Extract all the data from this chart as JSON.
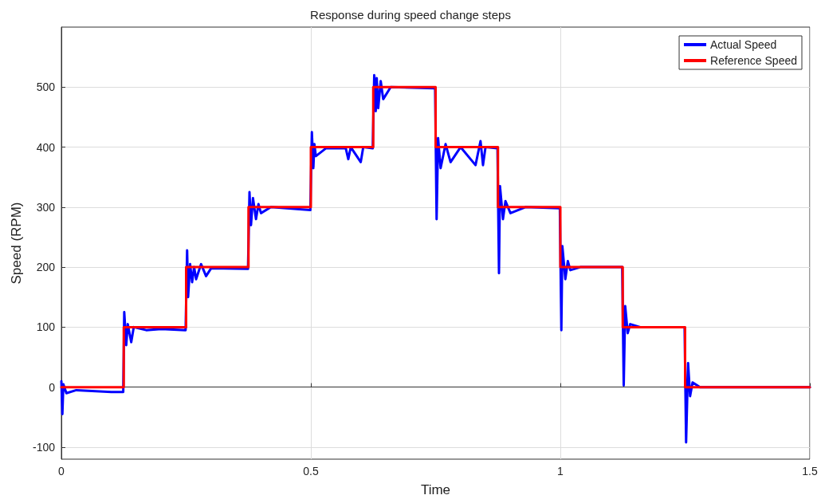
{
  "chart_data": {
    "type": "line",
    "title": "Response during speed change steps",
    "xlabel": "Time",
    "ylabel": "Speed (RPM)",
    "xlim": [
      0,
      1.5
    ],
    "xticks": [
      0,
      0.5,
      1,
      1.5
    ],
    "ylim": [
      -120,
      600
    ],
    "yticks": [
      -100,
      0,
      100,
      200,
      300,
      400,
      500
    ],
    "grid": true,
    "legend": "top right",
    "marker": "none",
    "line_style": "solid",
    "series": [
      {
        "name": "Actual Speed",
        "color": "#0000ff",
        "x": [
          0,
          0.002,
          0.004,
          0.01,
          0.03,
          0.1,
          0.124,
          0.126,
          0.13,
          0.133,
          0.14,
          0.145,
          0.17,
          0.2,
          0.249,
          0.252,
          0.254,
          0.258,
          0.262,
          0.266,
          0.27,
          0.28,
          0.29,
          0.3,
          0.374,
          0.377,
          0.38,
          0.384,
          0.39,
          0.395,
          0.4,
          0.42,
          0.499,
          0.502,
          0.505,
          0.507,
          0.51,
          0.53,
          0.57,
          0.575,
          0.58,
          0.6,
          0.605,
          0.624,
          0.627,
          0.63,
          0.632,
          0.635,
          0.64,
          0.645,
          0.66,
          0.749,
          0.752,
          0.755,
          0.76,
          0.77,
          0.78,
          0.8,
          0.83,
          0.84,
          0.845,
          0.85,
          0.874,
          0.877,
          0.879,
          0.885,
          0.89,
          0.9,
          0.93,
          0.999,
          1.002,
          1.004,
          1.01,
          1.015,
          1.02,
          1.04,
          1.124,
          1.127,
          1.13,
          1.135,
          1.14,
          1.16,
          1.249,
          1.252,
          1.256,
          1.26,
          1.265,
          1.28,
          1.5
        ],
        "values": [
          10,
          -45,
          5,
          -10,
          -5,
          -8,
          -8,
          125,
          70,
          105,
          75,
          100,
          95,
          97,
          95,
          228,
          150,
          205,
          175,
          200,
          180,
          205,
          185,
          198,
          197,
          325,
          270,
          315,
          280,
          305,
          290,
          300,
          295,
          425,
          365,
          405,
          385,
          398,
          398,
          380,
          400,
          375,
          400,
          398,
          520,
          460,
          515,
          465,
          510,
          480,
          500,
          498,
          280,
          415,
          365,
          405,
          375,
          400,
          370,
          410,
          370,
          400,
          398,
          190,
          335,
          280,
          310,
          290,
          300,
          298,
          95,
          235,
          180,
          210,
          195,
          200,
          200,
          3,
          135,
          90,
          105,
          100,
          100,
          -92,
          40,
          -15,
          8,
          0,
          0
        ]
      },
      {
        "name": "Reference Speed",
        "color": "#ff0000",
        "type": "step",
        "x": [
          0,
          0.125,
          0.25,
          0.375,
          0.5,
          0.625,
          0.75,
          0.875,
          1,
          1.125,
          1.25,
          1.375,
          1.5
        ],
        "values": [
          0,
          100,
          200,
          300,
          400,
          500,
          400,
          300,
          200,
          100,
          0,
          0,
          0
        ]
      }
    ]
  }
}
